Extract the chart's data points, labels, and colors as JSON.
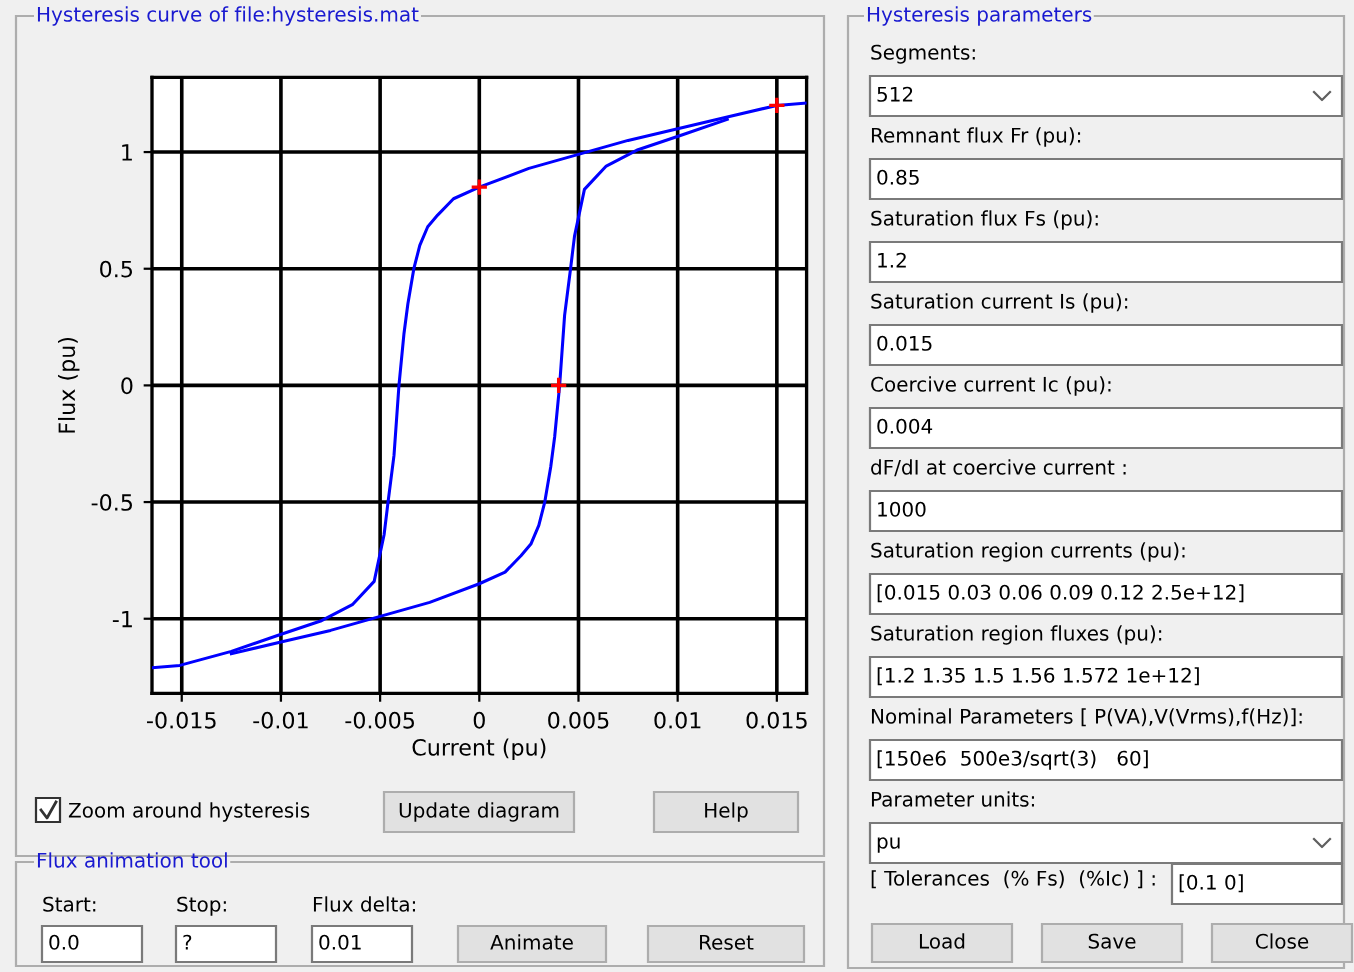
{
  "chart_data": [
    {
      "type": "line",
      "title": "Hysteresis curve of file:hysteresis.mat",
      "xlabel": "Current (pu)",
      "ylabel": "Flux (pu)",
      "xlim": [
        -0.0165,
        0.0165
      ],
      "ylim": [
        -1.32,
        1.32
      ],
      "xticks": [
        -0.015,
        -0.01,
        -0.005,
        0,
        0.005,
        0.01,
        0.015
      ],
      "yticks": [
        -1,
        -0.5,
        0,
        0.5,
        1
      ],
      "grid": true,
      "line_style": "solid",
      "series": [
        {
          "color": "#0000ff",
          "x": [
            0.0165,
            0.015,
            0.0125,
            0.01,
            0.0075,
            0.005,
            0.0025,
            0,
            -0.0013,
            -0.0021,
            -0.0026,
            -0.003,
            -0.0033,
            -0.0036,
            -0.0038,
            -0.00405,
            -0.0043,
            -0.0046,
            -0.0048,
            -0.0053,
            -0.0064,
            -0.008,
            -0.0101,
            -0.0125,
            -0.0151,
            -0.0165
          ],
          "values": [
            1.21,
            1.2,
            1.15,
            1.1,
            1.05,
            0.99,
            0.93,
            0.85,
            0.8,
            0.73,
            0.68,
            0.6,
            0.5,
            0.35,
            0.22,
            0,
            -0.3,
            -0.5,
            -0.64,
            -0.84,
            -0.94,
            -1.01,
            -1.07,
            -1.14,
            -1.2,
            -1.21
          ]
        },
        {
          "color": "#0000ff",
          "x": [
            -0.0125,
            -0.01,
            -0.0075,
            -0.005,
            -0.0025,
            0,
            0.0013,
            0.0021,
            0.0026,
            0.003,
            0.0033,
            0.0036,
            0.0038,
            0.00405,
            0.0043,
            0.0046,
            0.0048,
            0.0053,
            0.0064,
            0.008,
            0.0101,
            0.0125
          ],
          "values": [
            -1.15,
            -1.1,
            -1.05,
            -0.99,
            -0.93,
            -0.85,
            -0.8,
            -0.73,
            -0.68,
            -0.6,
            -0.5,
            -0.35,
            -0.22,
            0,
            0.3,
            0.5,
            0.64,
            0.84,
            0.94,
            1.01,
            1.07,
            1.14
          ]
        },
        {
          "type": "scatter",
          "color": "#ff0000",
          "marker": "cross",
          "x": [
            0,
            0.004,
            0.015
          ],
          "values": [
            0.85,
            0,
            1.2
          ]
        }
      ]
    },
    {
      "type": "other",
      "annotations": [
        "Zoom around hysteresis",
        "Update diagram",
        "Help"
      ]
    },
    {
      "type": "other",
      "title": "Flux animation tool",
      "annotations": [
        "Start:",
        "Stop:",
        "Flux delta:",
        "0.0",
        "?",
        "0.01",
        "Animate",
        "Reset"
      ]
    },
    {
      "type": "other",
      "title": "Hysteresis parameters",
      "annotations": [
        "Segments:",
        "512",
        "Remnant flux Fr (pu):",
        "0.85",
        "Saturation flux Fs (pu):",
        "1.2",
        "Saturation current Is (pu):",
        "0.015",
        "Coercive current Ic (pu):",
        "0.004",
        "dF/dI at coercive current :",
        "1000",
        "Saturation region currents (pu):",
        "[0.015 0.03 0.06 0.09 0.12 2.5e+12]",
        "Saturation region fluxes (pu):",
        "[1.2 1.35 1.5 1.56 1.572 1e+12]",
        "Nominal Parameters [ P(VA),V(Vrms),f(Hz)]:",
        "[150e6  500e3/sqrt(3)   60]",
        "Parameter units:",
        "pu",
        "[ Tolerances  (% Fs)  (%Ic) ] :",
        "[0.1 0]",
        "Load",
        "Save",
        "Close"
      ]
    }
  ]
}
